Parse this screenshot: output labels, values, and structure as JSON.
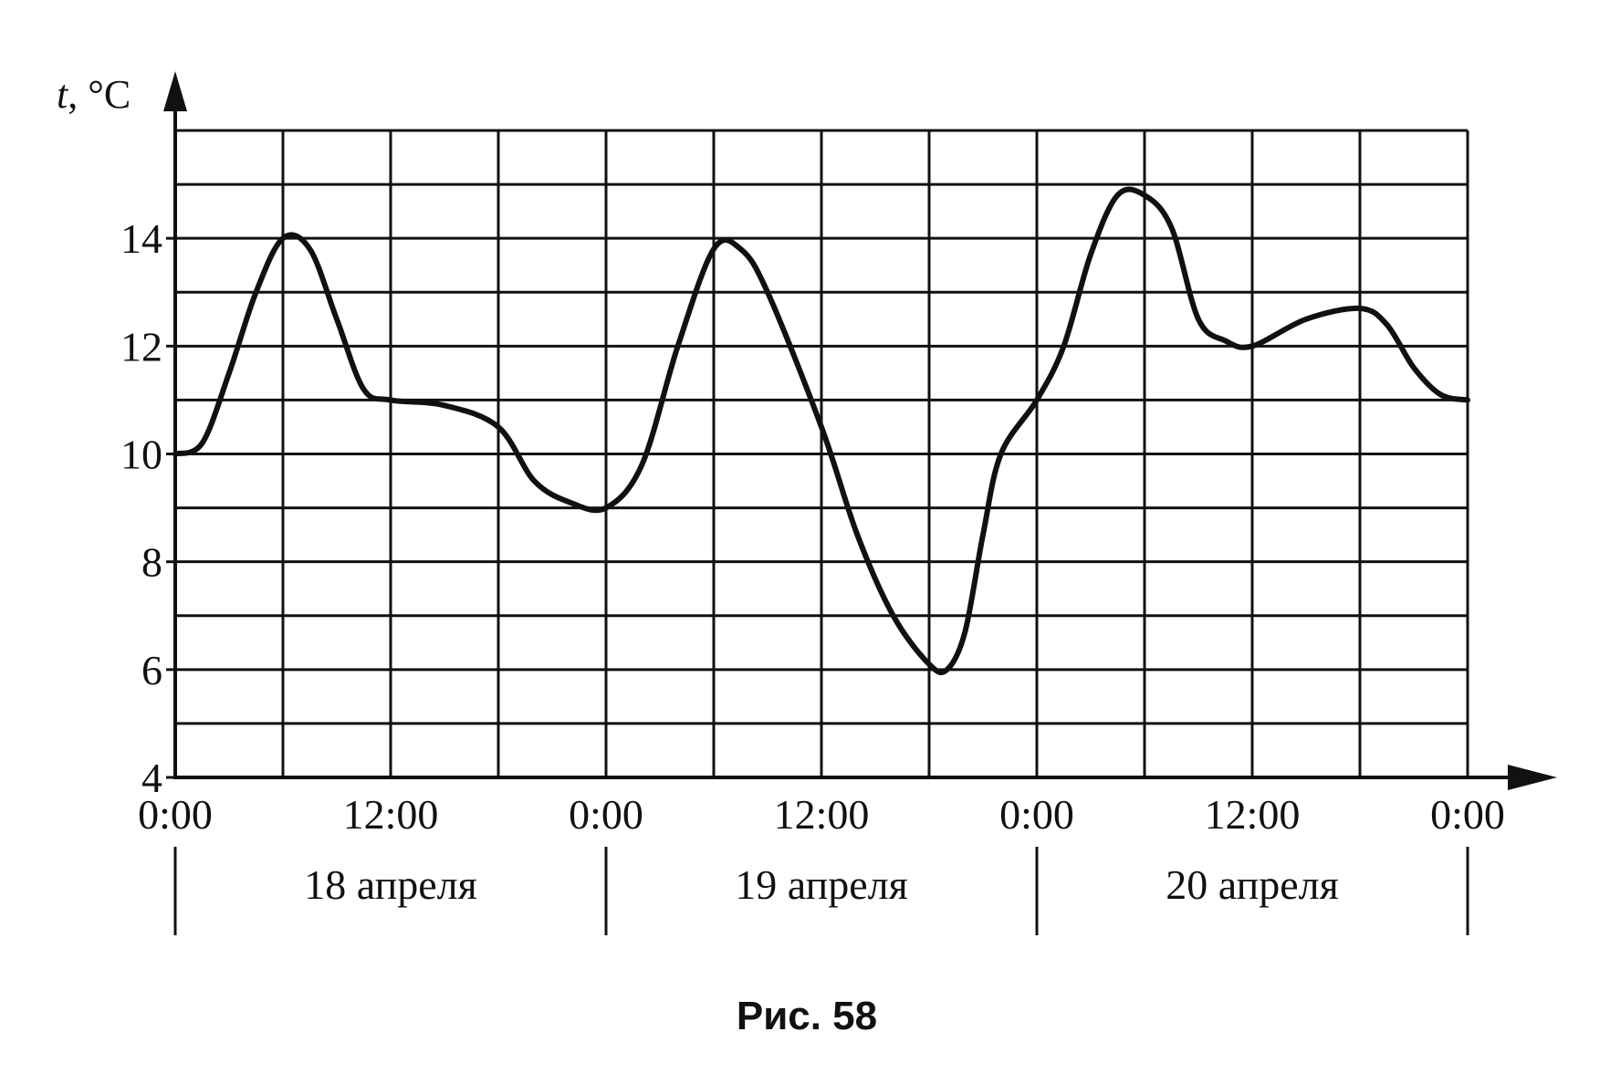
{
  "chart_data": {
    "type": "line",
    "ylabel_var": "t",
    "ylabel_unit": ", °C",
    "ylim": [
      4,
      16
    ],
    "yticks": [
      4,
      6,
      8,
      10,
      12,
      14
    ],
    "grid": true,
    "x_unit": "hours",
    "xlim": [
      0,
      72
    ],
    "xticks": [
      {
        "x": 0,
        "label": "0:00"
      },
      {
        "x": 12,
        "label": "12:00"
      },
      {
        "x": 24,
        "label": "0:00"
      },
      {
        "x": 36,
        "label": "12:00"
      },
      {
        "x": 48,
        "label": "0:00"
      },
      {
        "x": 60,
        "label": "12:00"
      },
      {
        "x": 72,
        "label": "0:00"
      }
    ],
    "days": [
      {
        "start": 0,
        "end": 24,
        "label": "18 апреля"
      },
      {
        "start": 24,
        "end": 48,
        "label": "19 апреля"
      },
      {
        "start": 48,
        "end": 72,
        "label": "20 апреля"
      }
    ],
    "series": [
      {
        "values": [
          [
            0,
            10
          ],
          [
            1.5,
            10.2
          ],
          [
            3,
            11.5
          ],
          [
            4.5,
            13
          ],
          [
            6,
            14
          ],
          [
            7.5,
            13.8
          ],
          [
            9,
            12.5
          ],
          [
            10.5,
            11.2
          ],
          [
            12,
            11
          ],
          [
            15,
            10.9
          ],
          [
            18,
            10.5
          ],
          [
            20,
            9.5
          ],
          [
            22,
            9.1
          ],
          [
            24,
            9
          ],
          [
            26,
            9.8
          ],
          [
            28,
            12
          ],
          [
            30,
            13.8
          ],
          [
            31.5,
            13.8
          ],
          [
            33,
            13
          ],
          [
            36,
            10.5
          ],
          [
            38,
            8.5
          ],
          [
            40,
            7
          ],
          [
            42,
            6.1
          ],
          [
            43,
            6
          ],
          [
            44,
            6.7
          ],
          [
            45,
            8.5
          ],
          [
            46,
            10
          ],
          [
            48,
            11
          ],
          [
            49.5,
            12
          ],
          [
            51,
            13.7
          ],
          [
            52.5,
            14.8
          ],
          [
            54,
            14.8
          ],
          [
            55.5,
            14.2
          ],
          [
            57,
            12.5
          ],
          [
            58.5,
            12.1
          ],
          [
            60,
            12
          ],
          [
            63,
            12.5
          ],
          [
            66,
            12.7
          ],
          [
            67.5,
            12.4
          ],
          [
            69,
            11.6
          ],
          [
            70.5,
            11.1
          ],
          [
            72,
            11
          ]
        ]
      }
    ]
  },
  "caption": "Рис. 58"
}
